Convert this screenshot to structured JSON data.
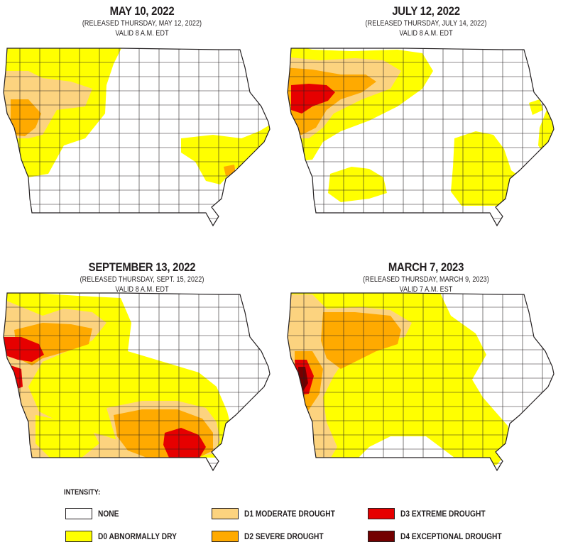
{
  "colors": {
    "none": "#ffffff",
    "d0": "#ffff00",
    "d1": "#fcd37f",
    "d2": "#ffaa00",
    "d3": "#e60000",
    "d4": "#730000",
    "border": "#231f20"
  },
  "panels": [
    {
      "title": "MAY 10, 2022",
      "released": "(RELEASED THURSDAY, MAY 12, 2022)",
      "valid": "VALID 8 A.M. EDT"
    },
    {
      "title": "JULY 12, 2022",
      "released": "(RELEASED THURSDAY, JULY 14, 2022)",
      "valid": "VALID 8 A.M. EDT"
    },
    {
      "title": "SEPTEMBER 13, 2022",
      "released": "(RELEASED THURSDAY, SEPT. 15, 2022)",
      "valid": "VALID 8 A.M. EDT"
    },
    {
      "title": "MARCH 7, 2023",
      "released": "(RELEASED THURSDAY, MARCH 9, 2023)",
      "valid": "VALID 7 A.M. EST"
    }
  ],
  "legend": {
    "title": "INTENSITY:",
    "items": [
      {
        "key": "none",
        "label": "NONE"
      },
      {
        "key": "d0",
        "label": "D0 ABNORMALLY DRY"
      },
      {
        "key": "d1",
        "label": "D1 MODERATE DROUGHT"
      },
      {
        "key": "d2",
        "label": "D2 SEVERE DROUGHT"
      },
      {
        "key": "d3",
        "label": "D3 EXTREME DROUGHT"
      },
      {
        "key": "d4",
        "label": "D4 EXCEPTIONAL DROUGHT"
      }
    ]
  }
}
